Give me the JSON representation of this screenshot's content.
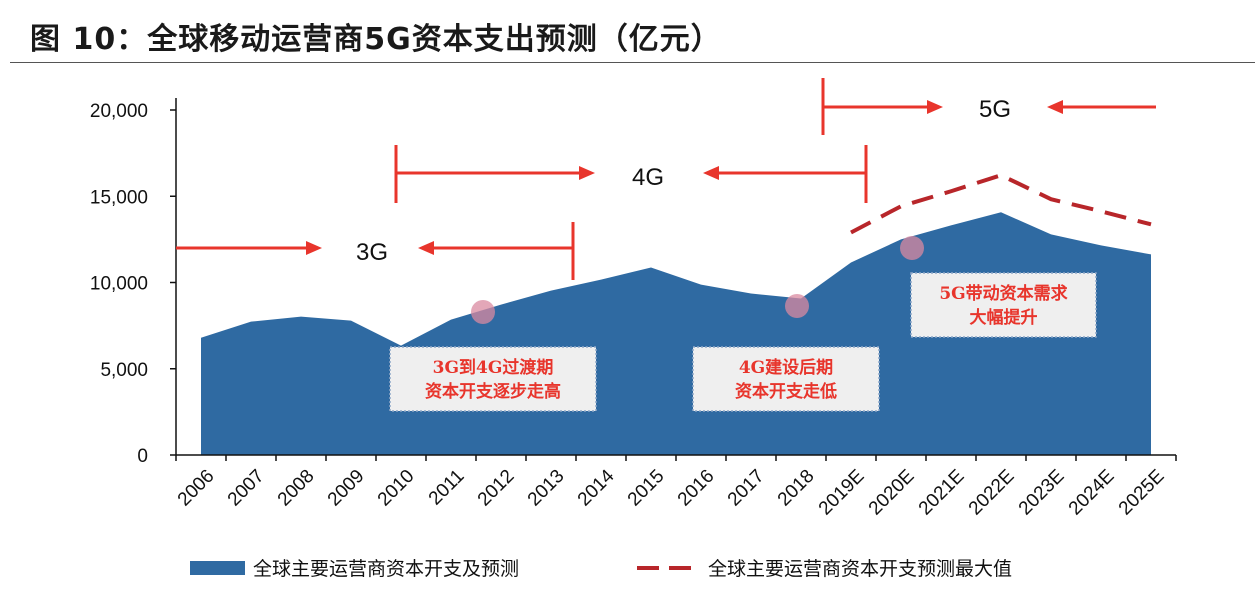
{
  "title": "图 10：全球移动运营商5G资本支出预测（亿元）",
  "colors": {
    "area": "#2f6aa2",
    "max_line": "#b8262a",
    "annotation": "#e8352c",
    "marker": "#d98aa0",
    "box_bg": "#efefef"
  },
  "chart_data": {
    "type": "area",
    "title": "图 10：全球移动运营商5G资本支出预测（亿元）",
    "xlabel": "",
    "ylabel": "",
    "ylim": [
      0,
      20000
    ],
    "yticks": [
      "0",
      "5,000",
      "10,000",
      "15,000",
      "20,000"
    ],
    "ytick_values": [
      0,
      5000,
      10000,
      15000,
      20000
    ],
    "grid": false,
    "legend_position": "bottom",
    "categories": [
      "2006",
      "2007",
      "2008",
      "2009",
      "2010",
      "2011",
      "2012",
      "2013",
      "2014",
      "2015",
      "2016",
      "2017",
      "2018",
      "2019E",
      "2020E",
      "2021E",
      "2022E",
      "2023E",
      "2024E",
      "2025E"
    ],
    "series": [
      {
        "name": "全球主要运营商资本开支及预测",
        "type": "area",
        "values": [
          6800,
          7730,
          8020,
          7790,
          6340,
          7850,
          8720,
          9530,
          10170,
          10870,
          9880,
          9360,
          9070,
          11160,
          12500,
          13310,
          14070,
          12790,
          12150,
          11630
        ]
      },
      {
        "name": "全球主要运营商资本开支预测最大值",
        "type": "dashed-line",
        "values": [
          null,
          null,
          null,
          null,
          null,
          null,
          null,
          null,
          null,
          null,
          null,
          null,
          null,
          12900,
          14420,
          15290,
          16220,
          14830,
          14130,
          13370
        ]
      }
    ],
    "annotations": {
      "phases": [
        "3G",
        "4G",
        "5G"
      ],
      "boxes": [
        {
          "line1": "3G到4G过渡期",
          "line2": "资本开支逐步走高"
        },
        {
          "line1": "4G建设后期",
          "line2": "资本开支走低"
        },
        {
          "line1": "5G带动资本需求",
          "line2": "大幅提升"
        }
      ],
      "highlight_points": [
        "2012",
        "2018",
        "2020E"
      ]
    }
  }
}
